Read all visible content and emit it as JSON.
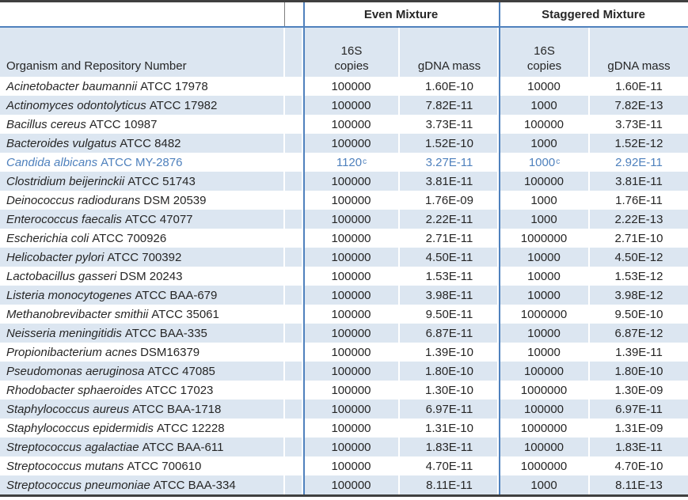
{
  "table": {
    "group_headers": {
      "even": "Even Mixture",
      "staggered": "Staggered Mixture"
    },
    "column_headers": {
      "organism": "Organism and Repository Number",
      "copies_line1": "16S",
      "copies_line2": "copies",
      "gdna": "gDNA mass"
    },
    "rows": [
      {
        "name": "Acinetobacter baumannii",
        "repo": "ATCC 17978",
        "even_copies": "100000",
        "even_sup": "",
        "even_gdna": "1.60E-10",
        "stag_copies": "10000",
        "stag_sup": "",
        "stag_gdna": "1.60E-11",
        "highlight": false
      },
      {
        "name": "Actinomyces odontolyticus",
        "repo": "ATCC 17982",
        "even_copies": "100000",
        "even_sup": "",
        "even_gdna": "7.82E-11",
        "stag_copies": "1000",
        "stag_sup": "",
        "stag_gdna": "7.82E-13",
        "highlight": false
      },
      {
        "name": "Bacillus cereus",
        "repo": "ATCC 10987",
        "even_copies": "100000",
        "even_sup": "",
        "even_gdna": "3.73E-11",
        "stag_copies": "100000",
        "stag_sup": "",
        "stag_gdna": "3.73E-11",
        "highlight": false
      },
      {
        "name": "Bacteroides vulgatus",
        "repo": "ATCC 8482",
        "even_copies": "100000",
        "even_sup": "",
        "even_gdna": "1.52E-10",
        "stag_copies": "1000",
        "stag_sup": "",
        "stag_gdna": "1.52E-12",
        "highlight": false
      },
      {
        "name": "Candida albicans",
        "repo": "ATCC MY-2876",
        "even_copies": "1120",
        "even_sup": "c",
        "even_gdna": "3.27E-11",
        "stag_copies": "1000",
        "stag_sup": "c",
        "stag_gdna": "2.92E-11",
        "highlight": true
      },
      {
        "name": "Clostridium beijerinckii",
        "repo": "ATCC 51743",
        "even_copies": "100000",
        "even_sup": "",
        "even_gdna": "3.81E-11",
        "stag_copies": "100000",
        "stag_sup": "",
        "stag_gdna": "3.81E-11",
        "highlight": false
      },
      {
        "name": "Deinococcus radiodurans",
        "repo": "DSM 20539",
        "even_copies": "100000",
        "even_sup": "",
        "even_gdna": "1.76E-09",
        "stag_copies": "1000",
        "stag_sup": "",
        "stag_gdna": "1.76E-11",
        "highlight": false
      },
      {
        "name": "Enterococcus faecalis",
        "repo": "ATCC 47077",
        "even_copies": "100000",
        "even_sup": "",
        "even_gdna": "2.22E-11",
        "stag_copies": "1000",
        "stag_sup": "",
        "stag_gdna": "2.22E-13",
        "highlight": false
      },
      {
        "name": "Escherichia coli",
        "repo": "ATCC 700926",
        "even_copies": "100000",
        "even_sup": "",
        "even_gdna": "2.71E-11",
        "stag_copies": "1000000",
        "stag_sup": "",
        "stag_gdna": "2.71E-10",
        "highlight": false
      },
      {
        "name": "Helicobacter pylori",
        "repo": "ATCC 700392",
        "even_copies": "100000",
        "even_sup": "",
        "even_gdna": "4.50E-11",
        "stag_copies": "10000",
        "stag_sup": "",
        "stag_gdna": "4.50E-12",
        "highlight": false
      },
      {
        "name": "Lactobacillus gasseri",
        "repo": "DSM 20243",
        "even_copies": "100000",
        "even_sup": "",
        "even_gdna": "1.53E-11",
        "stag_copies": "10000",
        "stag_sup": "",
        "stag_gdna": "1.53E-12",
        "highlight": false
      },
      {
        "name": "Listeria monocytogenes",
        "repo": "ATCC BAA-679",
        "even_copies": "100000",
        "even_sup": "",
        "even_gdna": "3.98E-11",
        "stag_copies": "10000",
        "stag_sup": "",
        "stag_gdna": "3.98E-12",
        "highlight": false
      },
      {
        "name": "Methanobrevibacter smithii",
        "repo": "ATCC 35061",
        "even_copies": "100000",
        "even_sup": "",
        "even_gdna": "9.50E-11",
        "stag_copies": "1000000",
        "stag_sup": "",
        "stag_gdna": "9.50E-10",
        "highlight": false
      },
      {
        "name": "Neisseria meningitidis",
        "repo": "ATCC BAA-335",
        "even_copies": "100000",
        "even_sup": "",
        "even_gdna": "6.87E-11",
        "stag_copies": "10000",
        "stag_sup": "",
        "stag_gdna": "6.87E-12",
        "highlight": false
      },
      {
        "name": "Propionibacterium acnes",
        "repo": "DSM16379",
        "even_copies": "100000",
        "even_sup": "",
        "even_gdna": "1.39E-10",
        "stag_copies": "10000",
        "stag_sup": "",
        "stag_gdna": "1.39E-11",
        "highlight": false
      },
      {
        "name": "Pseudomonas aeruginosa",
        "repo": "ATCC 47085",
        "even_copies": "100000",
        "even_sup": "",
        "even_gdna": "1.80E-10",
        "stag_copies": "100000",
        "stag_sup": "",
        "stag_gdna": "1.80E-10",
        "highlight": false
      },
      {
        "name": "Rhodobacter sphaeroides",
        "repo": "ATCC 17023",
        "even_copies": "100000",
        "even_sup": "",
        "even_gdna": "1.30E-10",
        "stag_copies": "1000000",
        "stag_sup": "",
        "stag_gdna": "1.30E-09",
        "highlight": false
      },
      {
        "name": "Staphylococcus aureus",
        "repo": "ATCC BAA-1718",
        "even_copies": "100000",
        "even_sup": "",
        "even_gdna": "6.97E-11",
        "stag_copies": "100000",
        "stag_sup": "",
        "stag_gdna": "6.97E-11",
        "highlight": false
      },
      {
        "name": "Staphylococcus epidermidis",
        "repo": "ATCC 12228",
        "even_copies": "100000",
        "even_sup": "",
        "even_gdna": "1.31E-10",
        "stag_copies": "1000000",
        "stag_sup": "",
        "stag_gdna": "1.31E-09",
        "highlight": false
      },
      {
        "name": "Streptococcus agalactiae",
        "repo": "ATCC BAA-611",
        "even_copies": "100000",
        "even_sup": "",
        "even_gdna": "1.83E-11",
        "stag_copies": "100000",
        "stag_sup": "",
        "stag_gdna": "1.83E-11",
        "highlight": false
      },
      {
        "name": "Streptococcus mutans",
        "repo": "ATCC 700610",
        "even_copies": "100000",
        "even_sup": "",
        "even_gdna": "4.70E-11",
        "stag_copies": "1000000",
        "stag_sup": "",
        "stag_gdna": "4.70E-10",
        "highlight": false
      },
      {
        "name": "Streptococcus pneumoniae",
        "repo": "ATCC BAA-334",
        "even_copies": "100000",
        "even_sup": "",
        "even_gdna": "8.11E-11",
        "stag_copies": "1000",
        "stag_sup": "",
        "stag_gdna": "8.11E-13",
        "highlight": false
      }
    ]
  },
  "colors": {
    "stripe_fill": "#DCE6F1",
    "divider_blue": "#4F81BD",
    "dark_border": "#404040",
    "highlight_text": "#4F81BD"
  }
}
